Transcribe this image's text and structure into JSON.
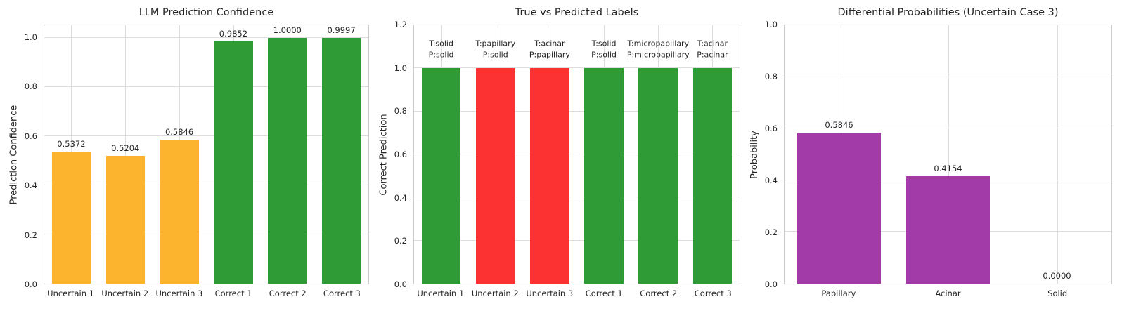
{
  "colors": {
    "orange": "#FCB32E",
    "green": "#2E9B37",
    "red": "#FC3232",
    "purple": "#A23AA8",
    "grid": "#DDDDDD",
    "axis_edge": "#CCCCCC",
    "text": "#262626"
  },
  "chart_data": [
    {
      "type": "bar",
      "title": "LLM Prediction Confidence",
      "xlabel": "",
      "ylabel": "Prediction Confidence",
      "categories": [
        "Uncertain 1",
        "Uncertain 2",
        "Uncertain 3",
        "Correct 1",
        "Correct 2",
        "Correct 3"
      ],
      "values": [
        0.5372,
        0.5204,
        0.5846,
        0.9852,
        1.0,
        0.9997
      ],
      "value_labels": [
        "0.5372",
        "0.5204",
        "0.5846",
        "0.9852",
        "1.0000",
        "0.9997"
      ],
      "bar_colors": [
        "orange",
        "orange",
        "orange",
        "green",
        "green",
        "green"
      ],
      "ylim": [
        0,
        1.05
      ],
      "yticks": [
        "0.0",
        "0.2",
        "0.4",
        "0.6",
        "0.8",
        "1.0"
      ],
      "grid": "on",
      "legend": "none"
    },
    {
      "type": "bar",
      "title": "True vs Predicted Labels",
      "xlabel": "",
      "ylabel": "Correct Prediction",
      "categories": [
        "Uncertain 1",
        "Uncertain 2",
        "Uncertain 3",
        "Correct 1",
        "Correct 2",
        "Correct 3"
      ],
      "values": [
        1.0,
        1.0,
        1.0,
        1.0,
        1.0,
        1.0
      ],
      "annotations": [
        "T:solid\nP:solid",
        "T:papillary\nP:solid",
        "T:acinar\nP:papillary",
        "T:solid\nP:solid",
        "T:micropapillary\nP:micropapillary",
        "T:acinar\nP:acinar"
      ],
      "bar_colors": [
        "green",
        "red",
        "red",
        "green",
        "green",
        "green"
      ],
      "ylim": [
        0,
        1.2
      ],
      "yticks": [
        "0.0",
        "0.2",
        "0.4",
        "0.6",
        "0.8",
        "1.0",
        "1.2"
      ],
      "grid": "on",
      "legend": "none"
    },
    {
      "type": "bar",
      "title": "Differential Probabilities (Uncertain Case 3)",
      "xlabel": "",
      "ylabel": "Probability",
      "categories": [
        "Papillary",
        "Acinar",
        "Solid"
      ],
      "values": [
        0.5846,
        0.4154,
        0.0
      ],
      "value_labels": [
        "0.5846",
        "0.4154",
        "0.0000"
      ],
      "bar_colors": [
        "purple",
        "purple",
        "purple"
      ],
      "ylim": [
        0,
        1.0
      ],
      "yticks": [
        "0.0",
        "0.2",
        "0.4",
        "0.6",
        "0.8",
        "1.0"
      ],
      "grid": "on",
      "legend": "none"
    }
  ]
}
